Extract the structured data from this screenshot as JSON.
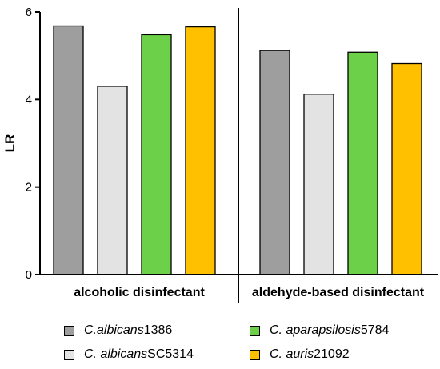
{
  "chart_data": {
    "type": "bar",
    "ylabel": "LR",
    "ylim": [
      0,
      6
    ],
    "yticks": [
      0,
      2,
      4,
      6
    ],
    "groups": [
      "alcoholic disinfectant",
      "aldehyde-based disinfectant"
    ],
    "series": [
      {
        "name_italic": "C.albicans",
        "name_rest": " 1386",
        "color": "#9e9e9e",
        "values": [
          5.68,
          5.12
        ]
      },
      {
        "name_italic": "C. albicans",
        "name_rest": " SC5314",
        "color": "#e3e3e3",
        "values": [
          4.3,
          4.12
        ]
      },
      {
        "name_italic": "C. aparapsilosis",
        "name_rest": " 5784",
        "color": "#6cd148",
        "values": [
          5.48,
          5.08
        ]
      },
      {
        "name_italic": "C. auris",
        "name_rest": " 21092",
        "color": "#ffc000",
        "values": [
          5.66,
          4.82
        ]
      }
    ]
  }
}
